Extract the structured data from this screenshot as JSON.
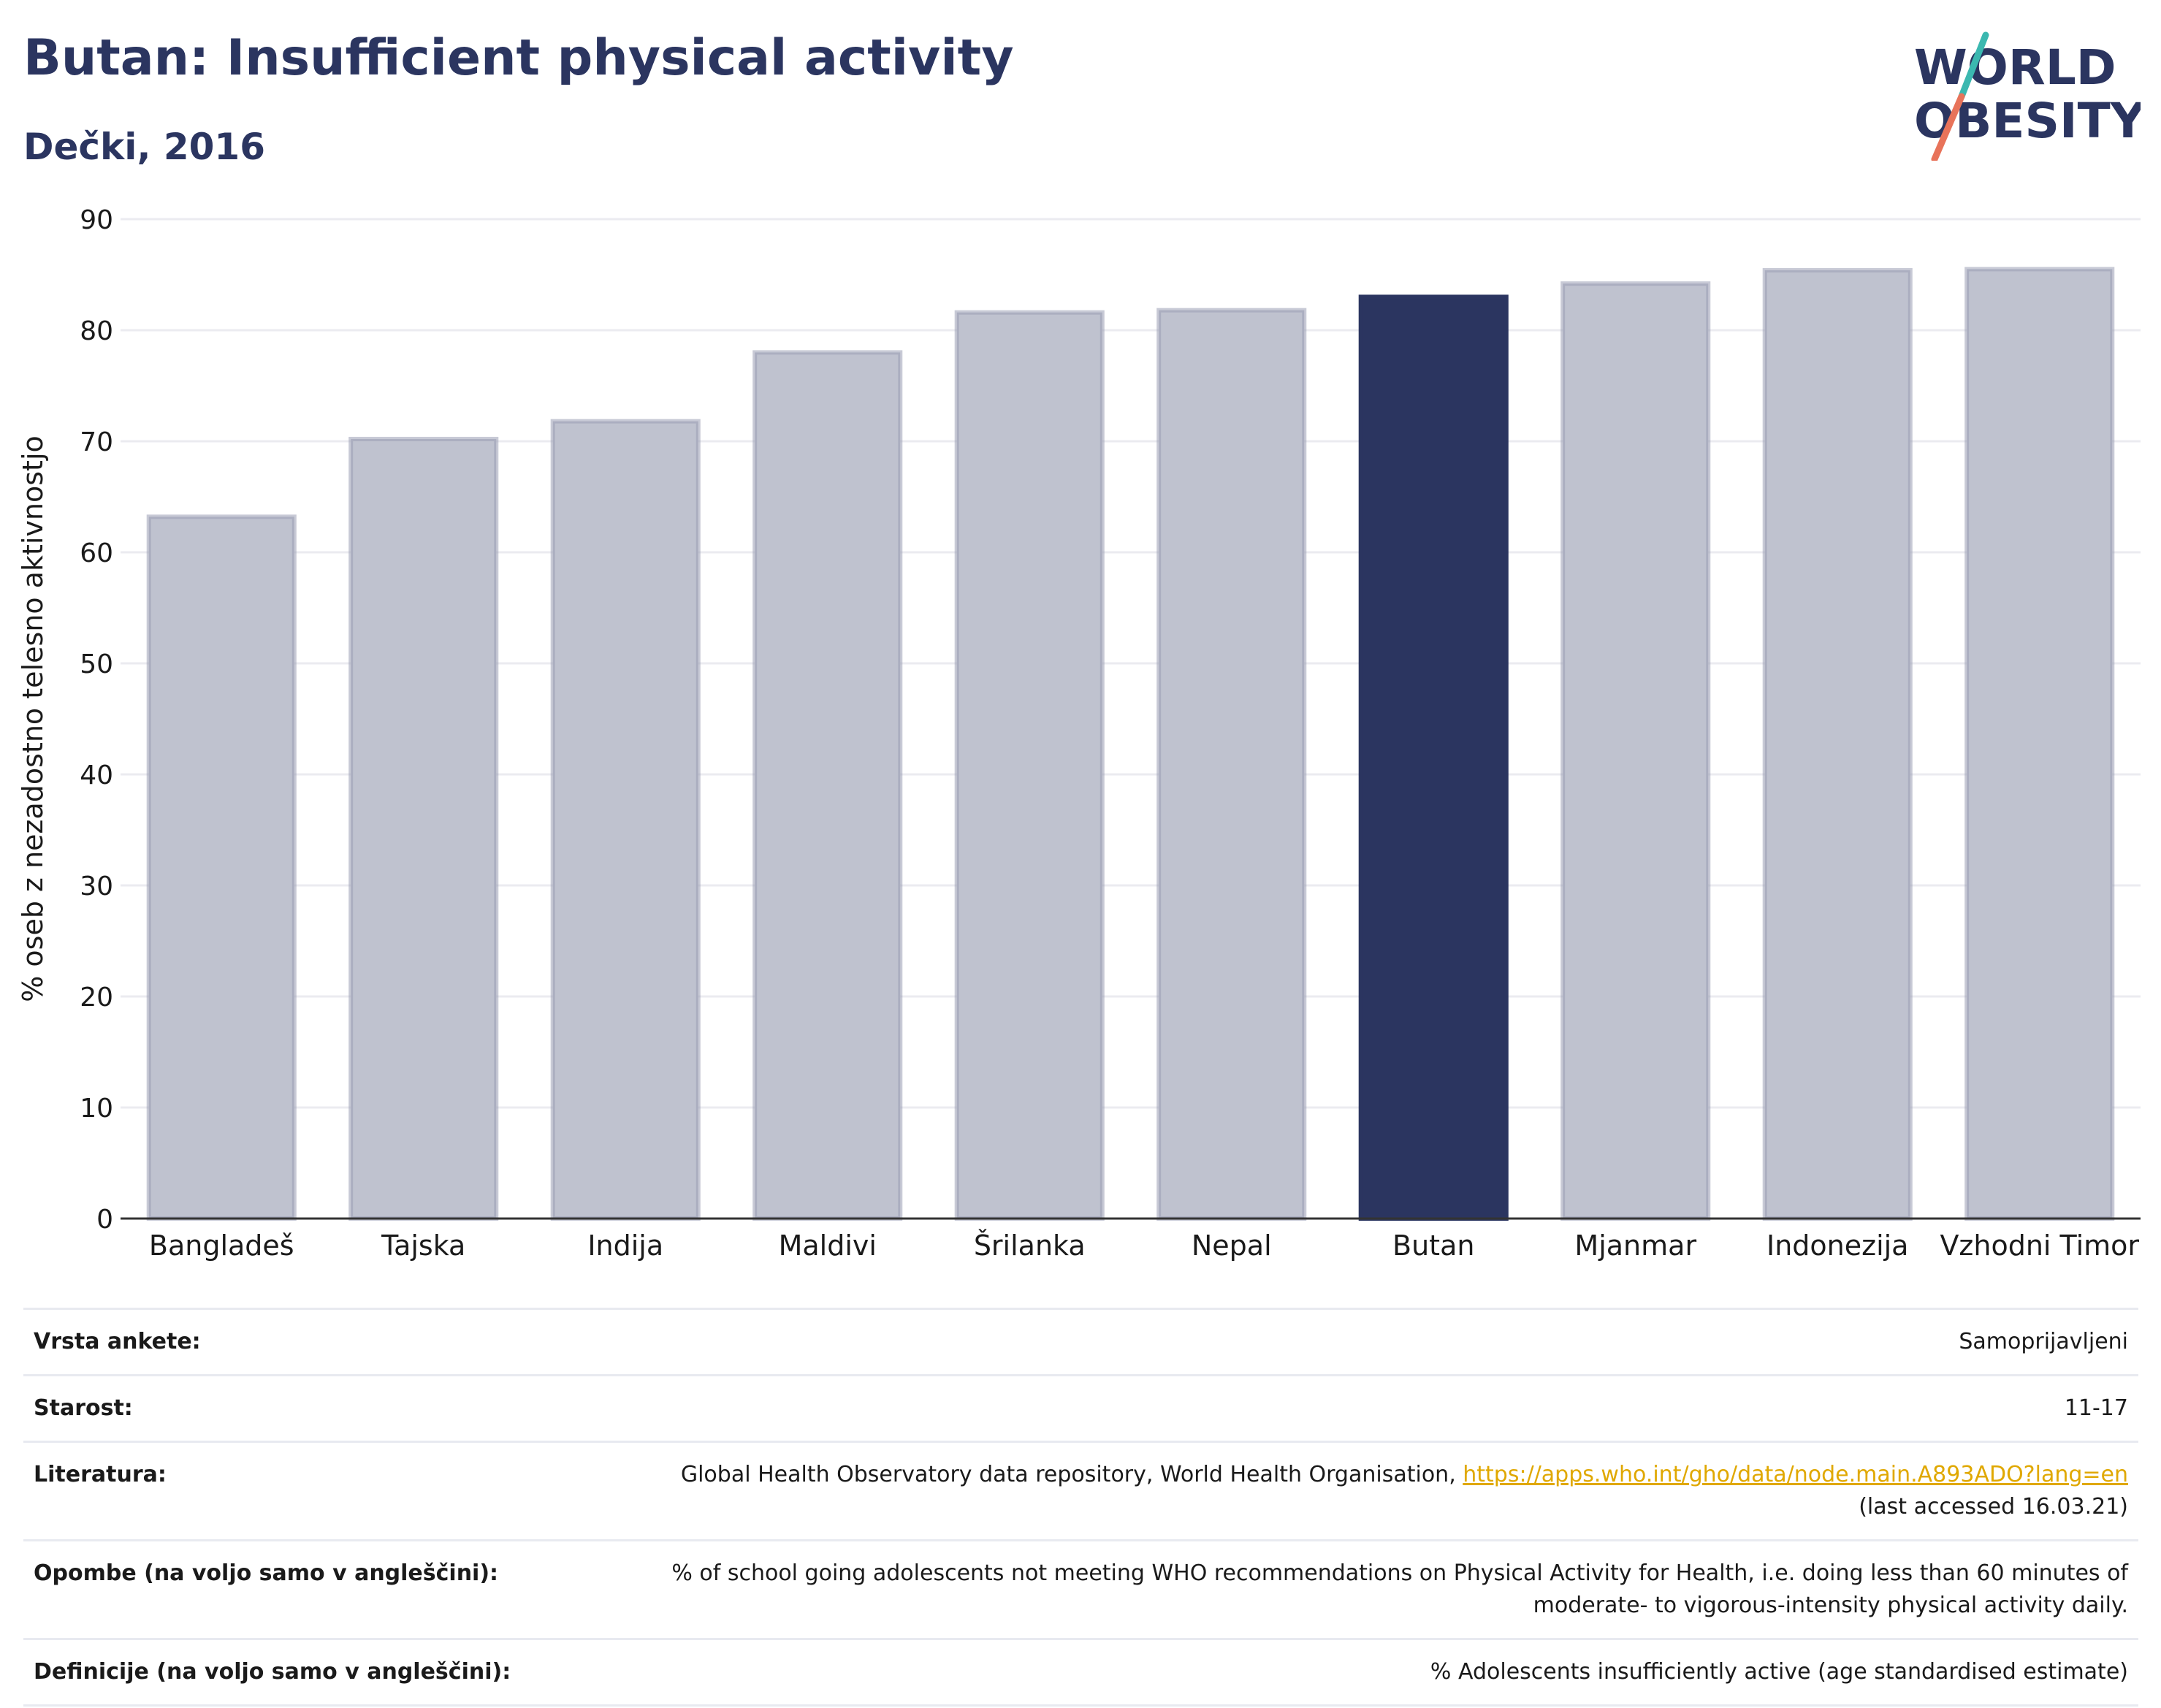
{
  "header": {
    "title": "Butan: Insufficient physical activity",
    "subtitle": "Dečki, 2016",
    "logo_line1": "WORLD",
    "logo_line2": "OBESITY"
  },
  "colors": {
    "highlight": "#2b3560",
    "bar": "#bfc2cf",
    "bar_edge": "#9a9fb5",
    "logo_slash_top": "#3bb8b0",
    "logo_slash_bottom": "#e8735a"
  },
  "chart_data": {
    "type": "bar",
    "title": "Butan: Insufficient physical activity",
    "subtitle": "Dečki, 2016",
    "xlabel": "",
    "ylabel": "% oseb z nezadostno telesno aktivnostjo",
    "ylim": [
      0,
      90
    ],
    "yticks": [
      0,
      10,
      20,
      30,
      40,
      50,
      60,
      70,
      80,
      90
    ],
    "grid": true,
    "categories": [
      "Bangladeš",
      "Tajska",
      "Indija",
      "Maldivi",
      "Šrilanka",
      "Nepal",
      "Butan",
      "Mjanmar",
      "Indonezija",
      "Vzhodni Timor"
    ],
    "values": [
      63.2,
      70.2,
      71.8,
      78.0,
      81.6,
      81.8,
      83.0,
      84.2,
      85.4,
      85.5
    ],
    "highlight": "Butan"
  },
  "table": {
    "rows": [
      {
        "label": "Vrsta ankete:",
        "value": "Samoprijavljeni"
      },
      {
        "label": "Starost:",
        "value": "11-17"
      },
      {
        "label": "Literatura:",
        "value_prefix": "Global Health Observatory data repository, World Health Organisation, ",
        "link": "https://apps.who.int/gho/data/node.main.A893ADO?lang=en",
        "value_suffix": "(last accessed 16.03.21)"
      },
      {
        "label": "Opombe (na voljo samo v angleščini):",
        "value": "% of school going adolescents not meeting WHO recommendations on Physical Activity for Health, i.e. doing less than 60 minutes of moderate- to vigorous-intensity physical activity daily."
      },
      {
        "label": "Definicije (na voljo samo v angleščini):",
        "value": "% Adolescents insufficiently active (age standardised estimate)"
      }
    ]
  }
}
